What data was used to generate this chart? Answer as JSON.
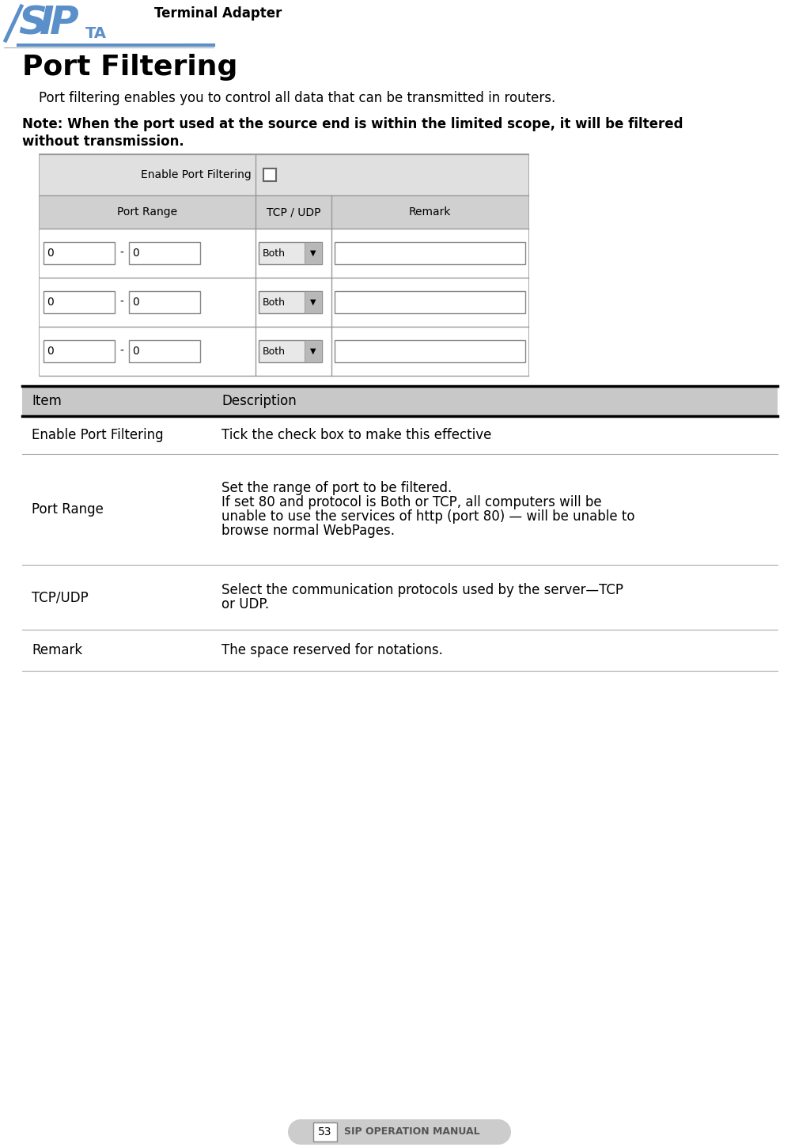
{
  "page_width": 10.05,
  "page_height": 14.5,
  "dpi": 100,
  "bg_color": "#ffffff",
  "header_logo_text": "Terminal Adapter",
  "page_title": "Port Filtering",
  "intro_text": "    Port filtering enables you to control all data that can be transmitted in routers.",
  "note_line1": "Note: When the port used at the source end is within the limited scope, it will be filtered",
  "note_line2": "without transmission.",
  "footer_page": "53",
  "footer_text": "SIP OPERATION MANUAL",
  "sip_blue": "#5b8fc9",
  "header_bg": "#c8c8c8",
  "ui_outer_bg": "#e8e8e8",
  "ui_row_bg": "#d8d8d8",
  "white": "#ffffff",
  "desc_table": {
    "col1_header": "Item",
    "col2_header": "Description",
    "rows": [
      {
        "item": "Enable Port Filtering",
        "desc_lines": [
          "Tick the check box to make this effective"
        ]
      },
      {
        "item": "Port Range",
        "desc_lines": [
          "Set the range of port to be filtered.",
          "If set 80 and protocol is Both or TCP, all computers will be",
          "unable to use the services of http (port 80) — will be unable to",
          "browse normal WebPages."
        ]
      },
      {
        "item": "TCP/UDP",
        "desc_lines": [
          "Select the communication protocols used by the server—TCP",
          "or UDP."
        ]
      },
      {
        "item": "Remark",
        "desc_lines": [
          "The space reserved for notations."
        ]
      }
    ]
  }
}
